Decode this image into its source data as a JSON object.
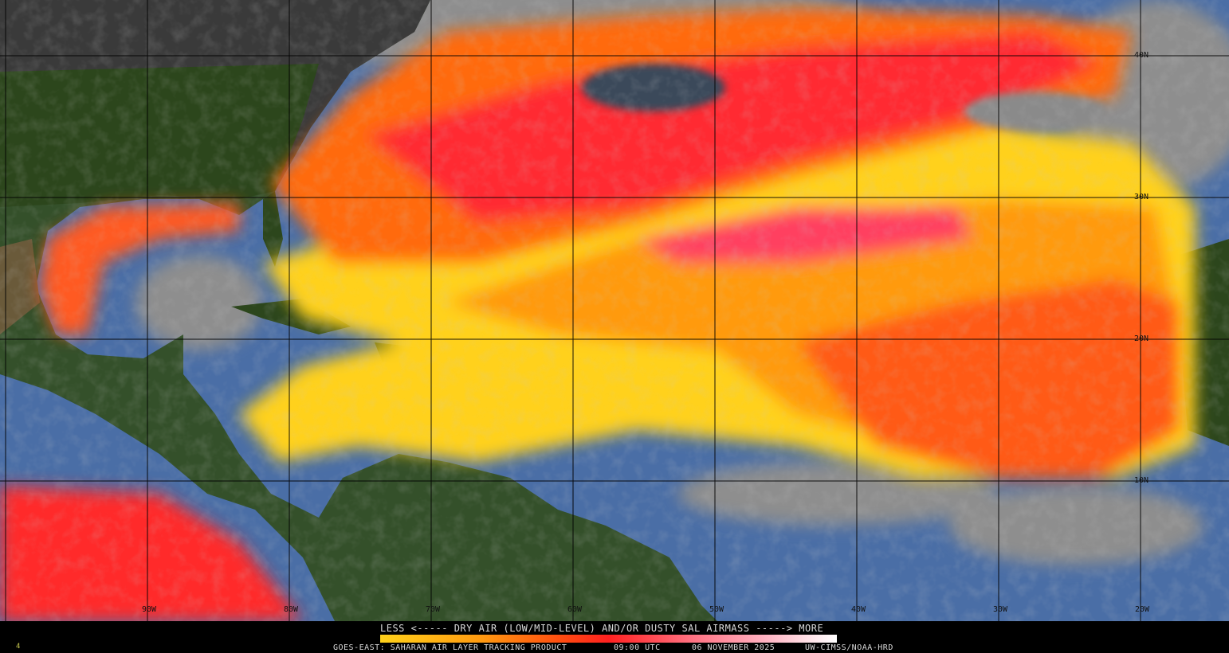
{
  "map": {
    "layer": "Saharan Air Layer satellite imagery",
    "region": "Tropical and North Atlantic, Gulf of Mexico, Caribbean",
    "colors": {
      "ocean": "#4a6ea6",
      "land": "#2f4a1e",
      "cloud": "#8a8a8a",
      "dry_air_low": "#ffd11a",
      "dry_air_mid": "#ff6a10",
      "dry_air_high": "#ff2a30",
      "dry_air_max": "#ffc0d0"
    },
    "longitude_labels": [
      "90W",
      "80W",
      "70W",
      "60W",
      "50W",
      "40W",
      "30W",
      "20W"
    ],
    "latitude_labels": [
      "40N",
      "30N",
      "20N",
      "10N"
    ]
  },
  "legend": {
    "title": "LESS <----- DRY AIR (LOW/MID-LEVEL) AND/OR DUSTY SAL AIRMASS -----> MORE",
    "colorbar": [
      "#ffd11a",
      "#ff9a10",
      "#ff4a10",
      "#ff2020",
      "#ff7080",
      "#ffb0c0",
      "#ffffff"
    ]
  },
  "footer": {
    "frame_number": "4",
    "product": "GOES-EAST: SAHARAN AIR LAYER TRACKING PRODUCT",
    "time": "09:00 UTC",
    "date": "06 NOVEMBER 2025",
    "credit": "UW-CIMSS/NOAA-HRD"
  }
}
